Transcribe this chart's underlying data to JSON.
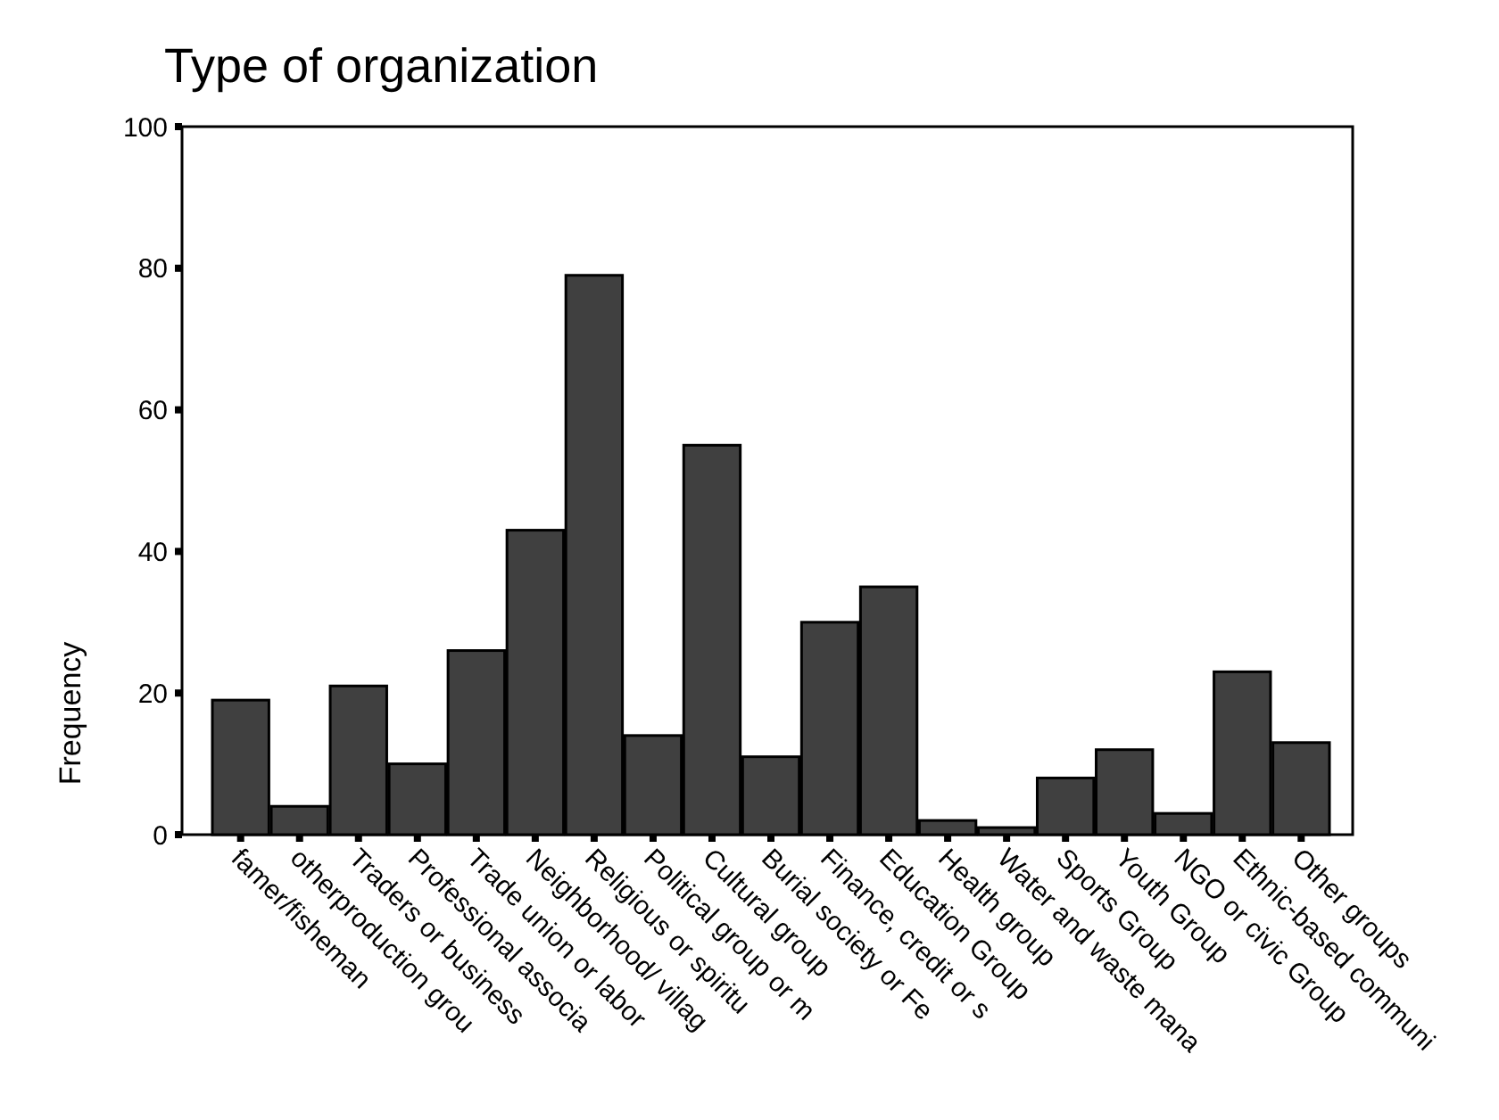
{
  "chart_data": {
    "type": "bar",
    "title": "Type of organization",
    "ylabel": "Frequency",
    "categories": [
      "famer/fisheman",
      "otherproduction grou",
      "Traders or business",
      "Professional associa",
      "Trade union or labor",
      "Neighborhood/ villag",
      "Religious or spiritu",
      "Political group or m",
      "Cultural group",
      "Burial society or Fe",
      "Finance, credit or s",
      "Education Group",
      "Health group",
      "Water and waste mana",
      "Sports Group",
      "Youth Group",
      "NGO or civic Group",
      "Ethnic-based communi",
      "Other groups"
    ],
    "values": [
      19,
      4,
      21,
      10,
      26,
      43,
      79,
      14,
      55,
      11,
      30,
      35,
      2,
      1,
      8,
      12,
      3,
      23,
      13
    ],
    "color": "#404040",
    "ylim": [
      0,
      100
    ],
    "yticks": [
      0,
      20,
      40,
      60,
      80,
      100
    ],
    "grid": false
  }
}
